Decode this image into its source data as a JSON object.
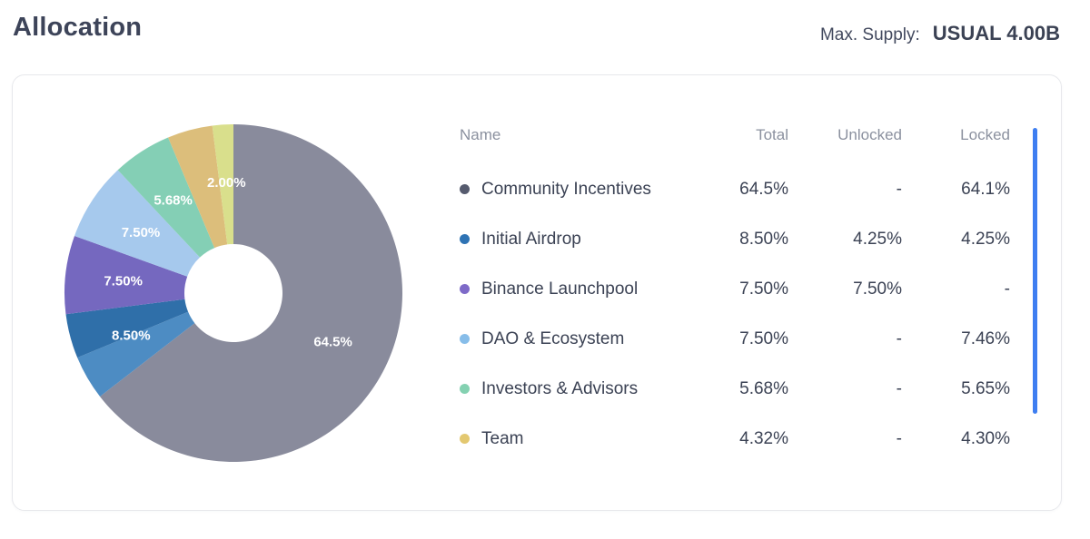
{
  "header": {
    "title": "Allocation",
    "max_supply_label": "Max. Supply:",
    "max_supply_value": "USUAL 4.00B"
  },
  "table": {
    "headers": [
      "Name",
      "Total",
      "Unlocked",
      "Locked"
    ],
    "rows": [
      {
        "name": "Community Incentives",
        "dot_color": "#565b6e",
        "total": "64.5%",
        "unlocked": "-",
        "locked": "64.1%"
      },
      {
        "name": "Initial Airdrop",
        "dot_color": "#2e73b4",
        "total": "8.50%",
        "unlocked": "4.25%",
        "locked": "4.25%"
      },
      {
        "name": "Binance Launchpool",
        "dot_color": "#7e6ac8",
        "total": "7.50%",
        "unlocked": "7.50%",
        "locked": "-"
      },
      {
        "name": "DAO & Ecosystem",
        "dot_color": "#87bde9",
        "total": "7.50%",
        "unlocked": "-",
        "locked": "7.46%"
      },
      {
        "name": "Investors & Advisors",
        "dot_color": "#84d1b1",
        "total": "5.68%",
        "unlocked": "-",
        "locked": "5.65%"
      },
      {
        "name": "Team",
        "dot_color": "#e3c870",
        "total": "4.32%",
        "unlocked": "-",
        "locked": "4.30%"
      }
    ]
  },
  "chart_data": {
    "type": "donut",
    "title": "Allocation",
    "unit": "%",
    "direction": "clockwise",
    "start_angle_deg": 0,
    "inner_radius_ratio": 0.29,
    "segments": [
      {
        "name": "Community Incentives",
        "value": 64.5,
        "color": "#898b9c"
      },
      {
        "name": "Initial Airdrop (unlocked)",
        "value": 4.25,
        "color": "#4d8cc3"
      },
      {
        "name": "Initial Airdrop (locked)",
        "value": 4.25,
        "color": "#2f6fa9"
      },
      {
        "name": "Binance Launchpool",
        "value": 7.5,
        "color": "#7568bf"
      },
      {
        "name": "DAO & Ecosystem",
        "value": 7.5,
        "color": "#a6c9ed"
      },
      {
        "name": "Investors & Advisors",
        "value": 5.68,
        "color": "#84cfb5"
      },
      {
        "name": "Team",
        "value": 4.32,
        "color": "#dcbe7b"
      },
      {
        "name": "",
        "value": 2.0,
        "color": "#d9df8c"
      }
    ],
    "labels": [
      {
        "text": "64.5%",
        "mid_pct": 32.25
      },
      {
        "text": "8.50%",
        "mid_pct": 68.75
      },
      {
        "text": "7.50%",
        "mid_pct": 76.75
      },
      {
        "text": "7.50%",
        "mid_pct": 84.25
      },
      {
        "text": "5.68%",
        "mid_pct": 90.84
      },
      {
        "text": "2.00%",
        "mid_pct": 99.0
      }
    ]
  },
  "colors": {
    "scrollbar_accent": "#3e7ef1",
    "title_text": "#3d4459",
    "header_text": "#8b919f",
    "cell_text": "#3b4254"
  }
}
